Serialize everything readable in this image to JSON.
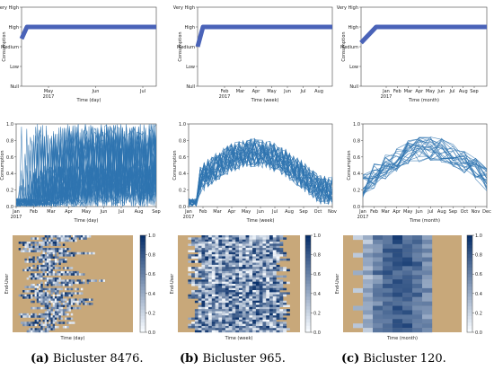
{
  "chart_data": [
    {
      "panel": "a-top",
      "type": "line",
      "xlabel": "Time (day)",
      "ylabel": "Consumption",
      "y_tick_labels": [
        "Null",
        "Low",
        "Medium",
        "High",
        "Very High"
      ],
      "x_tick_labels": [
        "May\n2017",
        "Jun",
        "Jul"
      ],
      "series": [
        {
          "x": [
            0,
            0.04,
            1
          ],
          "y": [
            2.4,
            3.0,
            3.0
          ]
        }
      ]
    },
    {
      "panel": "b-top",
      "type": "line",
      "xlabel": "Time (week)",
      "ylabel": "Consumption",
      "y_tick_labels": [
        "Null",
        "Low",
        "Medium",
        "High",
        "Very High"
      ],
      "x_tick_labels": [
        "Feb\n2017",
        "Mar",
        "Apr",
        "May",
        "Jun",
        "Jul",
        "Aug"
      ],
      "series": [
        {
          "x": [
            0,
            0.04,
            1
          ],
          "y": [
            2.0,
            3.0,
            3.0
          ]
        }
      ]
    },
    {
      "panel": "c-top",
      "type": "line",
      "xlabel": "Time (month)",
      "ylabel": "Consumption",
      "y_tick_labels": [
        "Null",
        "Low",
        "Medium",
        "High",
        "Very High"
      ],
      "x_tick_labels": [
        "Jan\n2017",
        "Feb",
        "Mar",
        "Apr",
        "May",
        "Jun",
        "Jul",
        "Aug",
        "Sep"
      ],
      "series": [
        {
          "x": [
            0,
            0.12,
            1
          ],
          "y": [
            2.2,
            3.0,
            3.0
          ]
        }
      ]
    },
    {
      "panel": "a-mid",
      "type": "line",
      "xlabel": "Time (day)",
      "ylabel": "Consumption",
      "ylim": [
        0,
        1.0
      ],
      "y_tick_labels": [
        "0.0",
        "0.2",
        "0.4",
        "0.6",
        "0.8",
        "1.0"
      ],
      "x_tick_labels": [
        "Jan\n2017",
        "Feb",
        "Mar",
        "Apr",
        "May",
        "Jun",
        "Jul",
        "Aug",
        "Sep"
      ]
    },
    {
      "panel": "b-mid",
      "type": "line",
      "xlabel": "Time (week)",
      "ylabel": "Consumption",
      "ylim": [
        0,
        1.0
      ],
      "y_tick_labels": [
        "0.0",
        "0.2",
        "0.4",
        "0.6",
        "0.8",
        "1.0"
      ],
      "x_tick_labels": [
        "Jan\n2017",
        "Feb",
        "Mar",
        "Apr",
        "May",
        "Jun",
        "Jul",
        "Aug",
        "Sep",
        "Oct",
        "Nov"
      ]
    },
    {
      "panel": "c-mid",
      "type": "line",
      "xlabel": "Time (month)",
      "ylabel": "Consumption",
      "ylim": [
        0,
        1.0
      ],
      "y_tick_labels": [
        "0.0",
        "0.2",
        "0.4",
        "0.6",
        "0.8",
        "1.0"
      ],
      "x_tick_labels": [
        "Jan\n2017",
        "Feb",
        "Mar",
        "Apr",
        "May",
        "Jun",
        "Jul",
        "Aug",
        "Sep",
        "Oct",
        "Nov",
        "Dec"
      ]
    },
    {
      "panel": "a-bot",
      "type": "heatmap",
      "xlabel": "Time (day)",
      "ylabel": "End-User",
      "colorbar_ticks": [
        "0.0",
        "0.2",
        "0.4",
        "0.6",
        "0.8",
        "1.0"
      ],
      "missing_color": "#c8a87a",
      "cmap": [
        "#f7fbff",
        "#08306b"
      ]
    },
    {
      "panel": "b-bot",
      "type": "heatmap",
      "xlabel": "Time (week)",
      "ylabel": "End-User",
      "colorbar_ticks": [
        "0.0",
        "0.2",
        "0.4",
        "0.6",
        "0.8",
        "1.0"
      ],
      "missing_color": "#c8a87a",
      "cmap": [
        "#f7fbff",
        "#08306b"
      ]
    },
    {
      "panel": "c-bot",
      "type": "heatmap",
      "xlabel": "Time (month)",
      "ylabel": "End-User",
      "colorbar_ticks": [
        "0.0",
        "0.2",
        "0.4",
        "0.6",
        "0.8",
        "1.0"
      ],
      "missing_color": "#c8a87a",
      "cmap": [
        "#f7fbff",
        "#08306b"
      ]
    }
  ],
  "captions": {
    "a_letter": "(a)",
    "a_text": " Bicluster 8476.",
    "b_letter": "(b)",
    "b_text": " Bicluster 965.",
    "c_letter": "(c)",
    "c_text": " Bicluster 120."
  },
  "colors": {
    "line_thick": "#4a63b8",
    "line_thin": "#2f74b0",
    "heat_missing": "#c8a87a"
  }
}
